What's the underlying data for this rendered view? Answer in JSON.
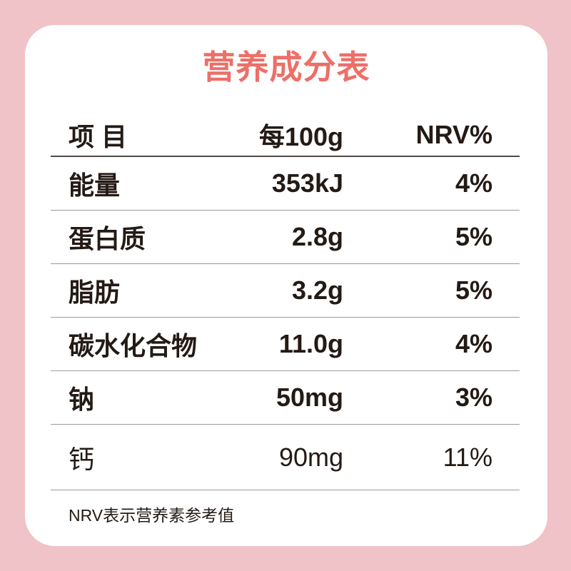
{
  "colors": {
    "background": "#efc3c8",
    "card": "#ffffff",
    "title": "#ec6f68",
    "text": "#241a15",
    "header_rule": "#4f4a48",
    "row_rule": "#9d9a99"
  },
  "title": {
    "text": "营养成分表"
  },
  "table": {
    "headers": {
      "item": "项 目",
      "per_100g": "每100g",
      "nrv": "NRV%"
    },
    "rows": [
      {
        "item": "能量",
        "per_100g": "353kJ",
        "nrv": "4%"
      },
      {
        "item": "蛋白质",
        "per_100g": "2.8g",
        "nrv": "5%"
      },
      {
        "item": "脂肪",
        "per_100g": "3.2g",
        "nrv": "5%"
      },
      {
        "item": "碳水化合物",
        "per_100g": "11.0g",
        "nrv": "4%"
      },
      {
        "item": "钠",
        "per_100g": "50mg",
        "nrv": "3%"
      },
      {
        "item": "钙",
        "per_100g": "90mg",
        "nrv": "11%"
      }
    ]
  },
  "footnote": {
    "text": "NRV表示营养素参考值"
  }
}
